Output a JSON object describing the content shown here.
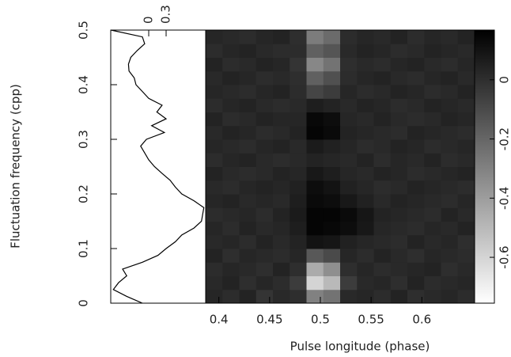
{
  "chart_data": {
    "type": "heatmap",
    "xlabel": "Pulse longitude (phase)",
    "ylabel": "Fluctuation frequency (cpp)",
    "xlim": [
      0.387,
      0.652
    ],
    "xticks": [
      0.4,
      0.45,
      0.5,
      0.55,
      0.6
    ],
    "ylim": [
      0,
      0.5
    ],
    "yticks": [
      0,
      0.1,
      0.2,
      0.3,
      0.4,
      0.5
    ],
    "colormap": "gray_r",
    "clim": [
      -0.755,
      0.168
    ],
    "cticks": [
      0,
      -0.2,
      -0.4,
      -0.6
    ],
    "z": [
      [
        0.03,
        0.01,
        0.04,
        -0.02,
        0.02,
        0.0,
        -0.3,
        -0.25,
        0.02,
        0.03,
        0.01,
        0.04,
        0.0,
        0.02,
        0.03,
        0.01
      ],
      [
        0.02,
        0.04,
        0.0,
        0.03,
        0.01,
        -0.05,
        -0.6,
        -0.5,
        -0.05,
        0.02,
        0.03,
        0.0,
        0.04,
        0.01,
        0.02,
        0.03
      ],
      [
        0.01,
        0.03,
        0.02,
        0.0,
        0.04,
        0.0,
        -0.45,
        -0.35,
        0.0,
        0.03,
        0.01,
        0.02,
        0.03,
        0.04,
        0.0,
        0.02
      ],
      [
        0.04,
        0.0,
        0.03,
        0.02,
        0.01,
        0.03,
        -0.15,
        -0.1,
        0.03,
        0.01,
        0.04,
        0.02,
        0.0,
        0.03,
        0.02,
        0.01
      ],
      [
        0.02,
        0.03,
        0.01,
        0.04,
        0.02,
        0.04,
        0.1,
        0.09,
        0.05,
        0.03,
        0.02,
        0.01,
        0.04,
        0.02,
        0.03,
        0.0
      ],
      [
        0.03,
        0.01,
        0.04,
        0.02,
        0.03,
        0.06,
        0.15,
        0.14,
        0.12,
        0.08,
        0.03,
        0.02,
        0.01,
        0.03,
        0.02,
        0.04
      ],
      [
        0.01,
        0.02,
        0.03,
        0.01,
        0.04,
        0.07,
        0.15,
        0.15,
        0.13,
        0.09,
        0.04,
        0.03,
        0.02,
        0.01,
        0.04,
        0.02
      ],
      [
        0.03,
        0.04,
        0.02,
        0.03,
        0.02,
        0.06,
        0.13,
        0.12,
        0.08,
        0.05,
        0.02,
        0.04,
        0.03,
        0.02,
        0.01,
        0.03
      ],
      [
        0.02,
        0.01,
        0.03,
        0.04,
        0.03,
        0.05,
        0.12,
        0.1,
        0.05,
        0.03,
        0.01,
        0.02,
        0.04,
        0.03,
        0.02,
        0.01
      ],
      [
        0.04,
        0.02,
        0.01,
        0.02,
        0.04,
        0.03,
        0.08,
        0.06,
        0.03,
        0.02,
        0.04,
        0.03,
        0.01,
        0.02,
        0.03,
        0.04
      ],
      [
        0.01,
        0.03,
        0.04,
        0.02,
        0.01,
        0.02,
        0.04,
        0.03,
        0.02,
        0.04,
        0.01,
        0.03,
        0.02,
        0.04,
        0.01,
        0.02
      ],
      [
        0.03,
        0.02,
        0.01,
        0.03,
        0.04,
        0.02,
        0.07,
        0.05,
        0.03,
        0.01,
        0.02,
        0.04,
        0.03,
        0.01,
        0.02,
        0.03
      ],
      [
        0.02,
        0.04,
        0.03,
        0.01,
        0.02,
        0.04,
        0.15,
        0.13,
        0.04,
        0.03,
        0.02,
        0.01,
        0.04,
        0.03,
        0.02,
        0.01
      ],
      [
        0.04,
        0.01,
        0.02,
        0.04,
        0.03,
        0.03,
        0.14,
        0.12,
        0.03,
        0.02,
        0.04,
        0.02,
        0.01,
        0.02,
        0.04,
        0.03
      ],
      [
        0.01,
        0.03,
        0.04,
        0.02,
        0.01,
        0.02,
        0.06,
        0.04,
        0.02,
        0.04,
        0.03,
        0.01,
        0.02,
        0.04,
        0.03,
        0.02
      ],
      [
        0.03,
        0.02,
        0.01,
        0.03,
        0.04,
        0.01,
        -0.08,
        -0.05,
        0.03,
        0.01,
        0.02,
        0.04,
        0.03,
        0.01,
        0.02,
        0.04
      ],
      [
        0.02,
        0.04,
        0.03,
        0.01,
        0.02,
        0.0,
        -0.18,
        -0.12,
        0.01,
        0.03,
        0.04,
        0.02,
        0.01,
        0.03,
        0.04,
        0.02
      ],
      [
        0.04,
        0.01,
        0.02,
        0.04,
        0.03,
        -0.02,
        -0.32,
        -0.25,
        0.0,
        0.02,
        0.01,
        0.03,
        0.04,
        0.02,
        0.01,
        0.03
      ],
      [
        0.01,
        0.03,
        0.04,
        0.02,
        0.01,
        0.01,
        -0.18,
        -0.14,
        0.02,
        0.04,
        0.03,
        0.01,
        0.02,
        0.04,
        0.03,
        0.02
      ],
      [
        0.03,
        0.02,
        0.01,
        0.03,
        0.04,
        0.0,
        -0.28,
        -0.22,
        0.01,
        0.03,
        0.02,
        0.04,
        0.01,
        0.03,
        0.02,
        0.04
      ]
    ],
    "profile": {
      "xlim": [
        -0.655,
        0.982
      ],
      "xticks": [
        0,
        0.3
      ],
      "freq": [
        0.5,
        0.4875,
        0.475,
        0.4625,
        0.45,
        0.4375,
        0.425,
        0.4125,
        0.4,
        0.3875,
        0.375,
        0.3625,
        0.35,
        0.3375,
        0.325,
        0.3125,
        0.3,
        0.2875,
        0.275,
        0.2625,
        0.25,
        0.2375,
        0.225,
        0.2125,
        0.2,
        0.1875,
        0.175,
        0.1625,
        0.15,
        0.1375,
        0.125,
        0.1125,
        0.1,
        0.0875,
        0.075,
        0.0625,
        0.05,
        0.0375,
        0.025,
        0.0125,
        0
      ],
      "power": [
        -0.65,
        -0.11,
        -0.07,
        -0.2,
        -0.31,
        -0.35,
        -0.34,
        -0.25,
        -0.22,
        -0.11,
        0,
        0.23,
        0.14,
        0.3,
        0.05,
        0.27,
        -0.04,
        -0.14,
        -0.07,
        0,
        0.1,
        0.23,
        0.37,
        0.46,
        0.57,
        0.78,
        0.95,
        0.93,
        0.91,
        0.78,
        0.57,
        0.46,
        0.3,
        0.16,
        -0.11,
        -0.45,
        -0.38,
        -0.52,
        -0.61,
        -0.38,
        -0.11
      ]
    }
  }
}
